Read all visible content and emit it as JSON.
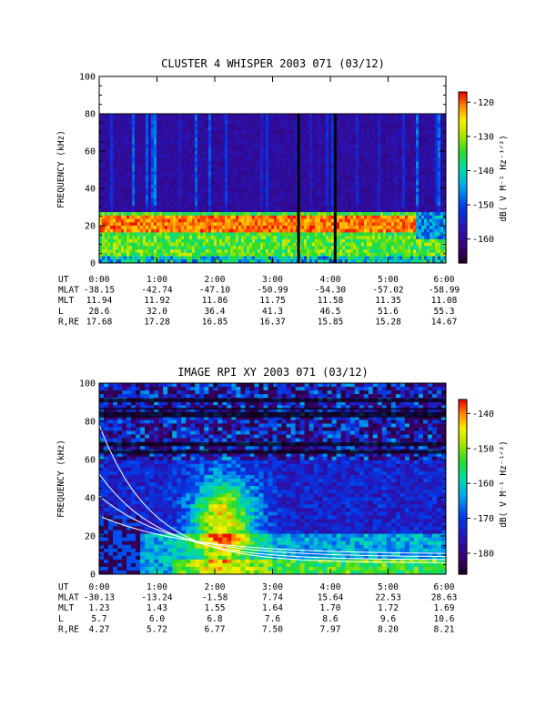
{
  "chart_data": [
    {
      "type": "heatmap",
      "title": "CLUSTER 4 WHISPER 2003 071 (03/12)",
      "ylabel": "FREQUENCY (kHz)",
      "ylim": [
        0,
        100
      ],
      "yticks": [
        "0",
        "20",
        "40",
        "60",
        "80",
        "100"
      ],
      "data_ceiling_khz": 80,
      "colorbar": {
        "label": "dB( V M⁻¹ Hz⁻¹ᐟ²)",
        "range": [
          -167,
          -117
        ],
        "ticks": [
          "-120",
          "-130",
          "-140",
          "-150",
          "-160"
        ]
      },
      "features": {
        "band_center_khz": 21,
        "gap_times": [
          "3:27",
          "4:05"
        ]
      },
      "ephemeris": {
        "rows": [
          {
            "label": "UT",
            "values": [
              "0:00",
              "1:00",
              "2:00",
              "3:00",
              "4:00",
              "5:00",
              "6:00"
            ]
          },
          {
            "label": "MLAT",
            "values": [
              "-38.15",
              "-42.74",
              "-47.10",
              "-50.99",
              "-54.30",
              "-57.02",
              "-58.99"
            ]
          },
          {
            "label": "MLT",
            "values": [
              "11.94",
              "11.92",
              "11.86",
              "11.75",
              "11.58",
              "11.35",
              "11.08"
            ]
          },
          {
            "label": "L",
            "values": [
              "28.6",
              "32.0",
              "36.4",
              "41.3",
              "46.5",
              "51.6",
              "55.3"
            ]
          },
          {
            "label": "R,RE",
            "values": [
              "17.68",
              "17.28",
              "16.85",
              "16.37",
              "15.85",
              "15.28",
              "14.67"
            ]
          }
        ]
      }
    },
    {
      "type": "heatmap",
      "title": "IMAGE RPI XY 2003 071 (03/12)",
      "ylabel": "FREQUENCY (kHz)",
      "ylim": [
        0,
        100
      ],
      "yticks": [
        "0",
        "20",
        "40",
        "60",
        "80",
        "100"
      ],
      "colorbar": {
        "label": "dB( V M⁻¹ Hz⁻¹ᐟ²)",
        "range": [
          -186,
          -136
        ],
        "ticks": [
          "-140",
          "-150",
          "-160",
          "-170",
          "-180"
        ]
      },
      "ephemeris": {
        "rows": [
          {
            "label": "UT",
            "values": [
              "0:00",
              "1:00",
              "2:00",
              "3:00",
              "4:00",
              "5:00",
              "6:00"
            ]
          },
          {
            "label": "MLAT",
            "values": [
              "-30.13",
              "-13.24",
              "-1.58",
              "7.74",
              "15.64",
              "22.53",
              "28.63"
            ]
          },
          {
            "label": "MLT",
            "values": [
              "1.23",
              "1.43",
              "1.55",
              "1.64",
              "1.70",
              "1.72",
              "1.69"
            ]
          },
          {
            "label": "L",
            "values": [
              "5.7",
              "6.0",
              "6.8",
              "7.6",
              "8.6",
              "9.6",
              "10.6"
            ]
          },
          {
            "label": "R,RE",
            "values": [
              "4.27",
              "5.72",
              "6.77",
              "7.50",
              "7.97",
              "8.20",
              "8.21"
            ]
          }
        ]
      }
    }
  ]
}
